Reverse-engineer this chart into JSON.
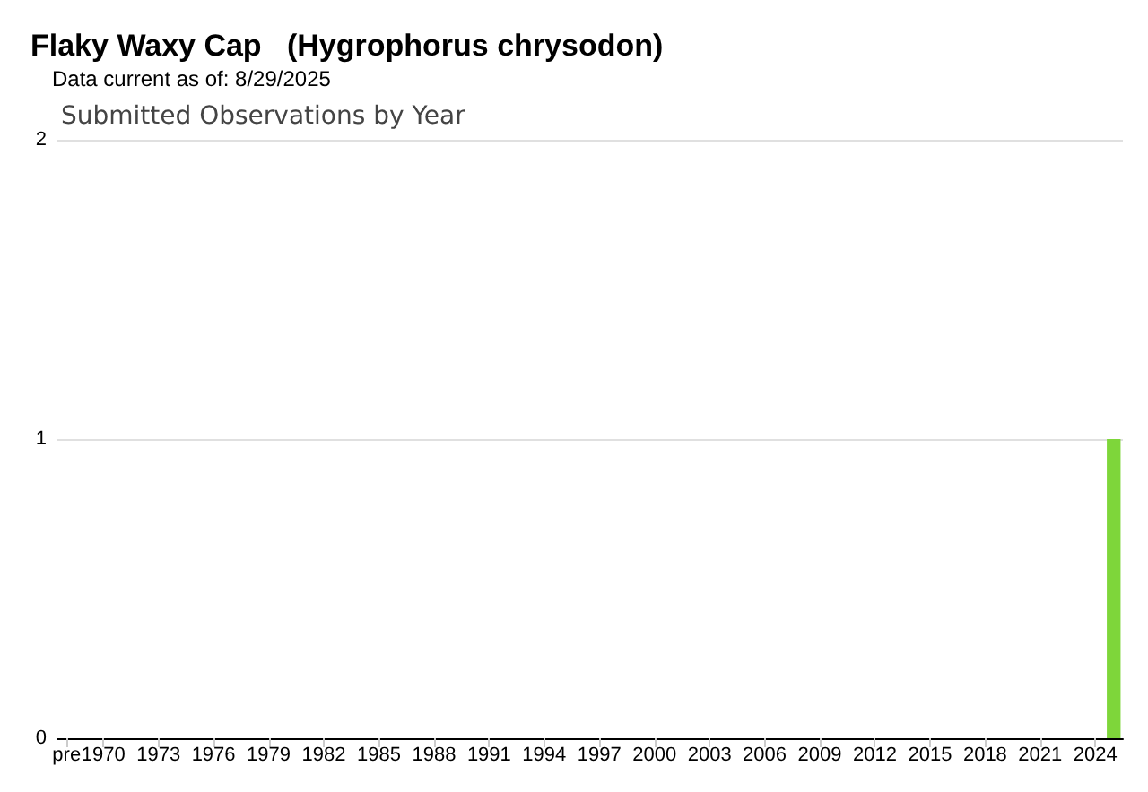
{
  "chart_data": {
    "type": "bar",
    "title": "Flaky Waxy Cap   (Hygrophorus chrysodon)",
    "subtitle": "Data current as of: 8/29/2025",
    "annotations": [
      "Submitted Observations by Year"
    ],
    "categories": [
      "pre",
      null,
      "1970",
      null,
      null,
      "1973",
      null,
      null,
      "1976",
      null,
      null,
      "1979",
      null,
      null,
      "1982",
      null,
      null,
      "1985",
      null,
      null,
      "1988",
      null,
      null,
      "1991",
      null,
      null,
      "1994",
      null,
      null,
      "1997",
      null,
      null,
      "2000",
      null,
      null,
      "2003",
      null,
      null,
      "2006",
      null,
      null,
      "2009",
      null,
      null,
      "2012",
      null,
      null,
      "2015",
      null,
      null,
      "2018",
      null,
      null,
      "2021",
      null,
      null,
      "2024",
      null
    ],
    "values": [
      0,
      0,
      0,
      0,
      0,
      0,
      0,
      0,
      0,
      0,
      0,
      0,
      0,
      0,
      0,
      0,
      0,
      0,
      0,
      0,
      0,
      0,
      0,
      0,
      0,
      0,
      0,
      0,
      0,
      0,
      0,
      0,
      0,
      0,
      0,
      0,
      0,
      0,
      0,
      0,
      0,
      0,
      0,
      0,
      0,
      0,
      0,
      0,
      0,
      0,
      0,
      0,
      0,
      0,
      0,
      0,
      0,
      1
    ],
    "color": "#7ed63a",
    "ylim": [
      0,
      2
    ],
    "yticks": [
      0,
      1,
      2
    ],
    "grid": "y"
  }
}
